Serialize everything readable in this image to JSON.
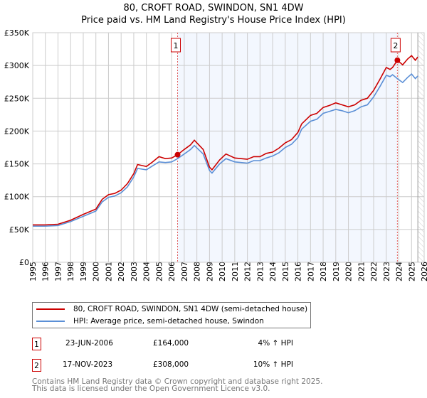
{
  "chart_data": {
    "type": "line",
    "title": "80, CROFT ROAD, SWINDON, SN1 4DW",
    "subtitle": "Price paid vs. HM Land Registry's House Price Index (HPI)",
    "xlim": [
      1995,
      2026
    ],
    "ylim": [
      0,
      350000
    ],
    "yticks": [
      {
        "v": 0,
        "label": "£0"
      },
      {
        "v": 50000,
        "label": "£50K"
      },
      {
        "v": 100000,
        "label": "£100K"
      },
      {
        "v": 150000,
        "label": "£150K"
      },
      {
        "v": 200000,
        "label": "£200K"
      },
      {
        "v": 250000,
        "label": "£250K"
      },
      {
        "v": 300000,
        "label": "£300K"
      },
      {
        "v": 350000,
        "label": "£350K"
      }
    ],
    "xticks": [
      "1995",
      "1996",
      "1997",
      "1998",
      "1999",
      "2000",
      "2001",
      "2002",
      "2003",
      "2004",
      "2005",
      "2006",
      "2007",
      "2008",
      "2009",
      "2010",
      "2011",
      "2012",
      "2013",
      "2014",
      "2015",
      "2016",
      "2017",
      "2018",
      "2019",
      "2020",
      "2021",
      "2022",
      "2023",
      "2024",
      "2025",
      "2026"
    ],
    "grid": true,
    "x": [
      1995,
      1996,
      1997,
      1998,
      1999,
      2000,
      2000.5,
      2001,
      2001.5,
      2002,
      2002.5,
      2003,
      2003.3,
      2004,
      2004.5,
      2005,
      2005.5,
      2006,
      2006.47,
      2007,
      2007.5,
      2007.8,
      2008.5,
      2009,
      2009.2,
      2009.8,
      2010.3,
      2011,
      2012,
      2012.5,
      2013,
      2013.5,
      2014,
      2014.5,
      2015,
      2015.5,
      2016,
      2016.3,
      2017,
      2017.5,
      2018,
      2018.5,
      2019,
      2019.5,
      2020,
      2020.5,
      2021,
      2021.5,
      2022,
      2022.5,
      2023,
      2023.3,
      2023.5,
      2023.88,
      2024.3,
      2024.7,
      2025,
      2025.3,
      2025.5
    ],
    "series": [
      {
        "name": "80, CROFT ROAD, SWINDON, SN1 4DW (semi-detached house)",
        "color": "#cc0000",
        "values": [
          57,
          57,
          58,
          64,
          73,
          81,
          96,
          103,
          105,
          110,
          120,
          135,
          149,
          146,
          153,
          161,
          158,
          159,
          164,
          172,
          179,
          186,
          172,
          145,
          141,
          156,
          165,
          159,
          157,
          161,
          161,
          166,
          168,
          174,
          182,
          187,
          198,
          211,
          224,
          227,
          236,
          239,
          243,
          240,
          237,
          240,
          247,
          250,
          262,
          279,
          297,
          294,
          297,
          308,
          301,
          310,
          315,
          308,
          313
        ]
      },
      {
        "name": "HPI: Average price, semi-detached house, Swindon",
        "color": "#5b8fd6",
        "values": [
          55,
          55,
          56,
          62,
          70,
          78,
          92,
          99,
          101,
          106,
          115,
          130,
          143,
          141,
          147,
          153,
          152,
          153,
          158,
          165,
          172,
          178,
          165,
          140,
          136,
          150,
          158,
          153,
          151,
          155,
          155,
          159,
          162,
          167,
          175,
          180,
          190,
          203,
          215,
          218,
          227,
          230,
          233,
          231,
          228,
          231,
          237,
          240,
          252,
          268,
          285,
          283,
          286,
          280,
          274,
          282,
          287,
          280,
          284
        ]
      }
    ],
    "value_unit": "thousands GBP",
    "forecast_hatch_from": 2025.5,
    "sales": [
      {
        "id": "1",
        "x": 2006.47,
        "price": 164000,
        "date": "23-JUN-2006",
        "price_label": "£164,000",
        "hpi": "4% ↑ HPI"
      },
      {
        "id": "2",
        "x": 2023.88,
        "price": 308000,
        "date": "17-NOV-2023",
        "price_label": "£308,000",
        "hpi": "10% ↑ HPI"
      }
    ],
    "legend_position": "below"
  },
  "footer": [
    "Contains HM Land Registry data © Crown copyright and database right 2025.",
    "This data is licensed under the Open Government Licence v3.0."
  ]
}
